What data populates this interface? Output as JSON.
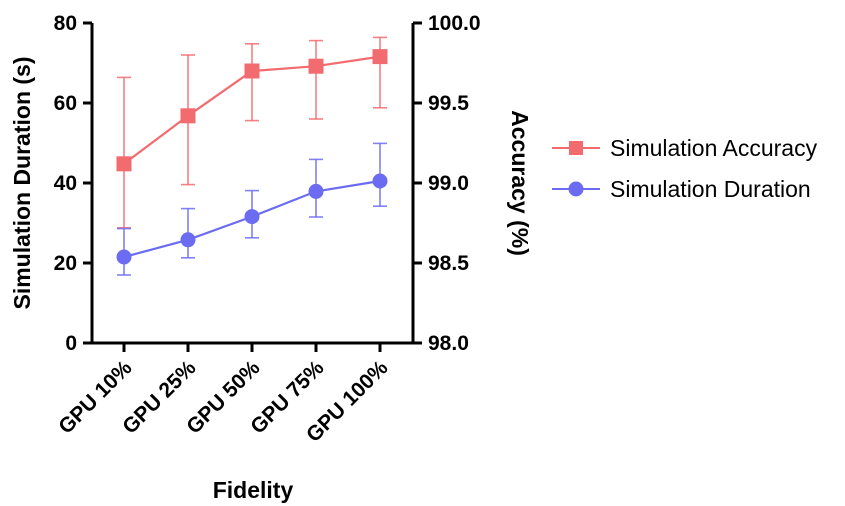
{
  "chart_data": {
    "type": "line",
    "categories": [
      "GPU 10%",
      "GPU 25%",
      "GPU 50%",
      "GPU 75%",
      "GPU 100%"
    ],
    "xlabel": "Fidelity",
    "ylabel_left": "Simulation Duration (s)",
    "ylabel_right": "Accuracy (%)",
    "ylim_left": [
      0,
      80
    ],
    "yticks_left": [
      "0",
      "20",
      "40",
      "60",
      "80"
    ],
    "ylim_right": [
      98.0,
      100.0
    ],
    "yticks_right": [
      "98.0",
      "98.5",
      "99.0",
      "99.5",
      "100.0"
    ],
    "grid": false,
    "legend_position": "right",
    "series": [
      {
        "name": "Simulation Accuracy",
        "axis": "right",
        "marker": "square",
        "color": "#f26b6f",
        "values": [
          99.12,
          99.42,
          99.7,
          99.73,
          99.79
        ],
        "err_low": [
          98.72,
          98.99,
          99.39,
          99.4,
          99.47
        ],
        "err_high": [
          99.66,
          99.8,
          99.87,
          99.89,
          99.91
        ]
      },
      {
        "name": "Simulation Duration",
        "axis": "left",
        "marker": "circle",
        "color": "#6b6cf2",
        "values": [
          21.5,
          25.8,
          31.6,
          37.9,
          40.5
        ],
        "err_low": [
          17.0,
          21.3,
          26.3,
          31.5,
          34.2
        ],
        "err_high": [
          28.6,
          33.6,
          38.1,
          45.9,
          49.9
        ]
      }
    ]
  }
}
